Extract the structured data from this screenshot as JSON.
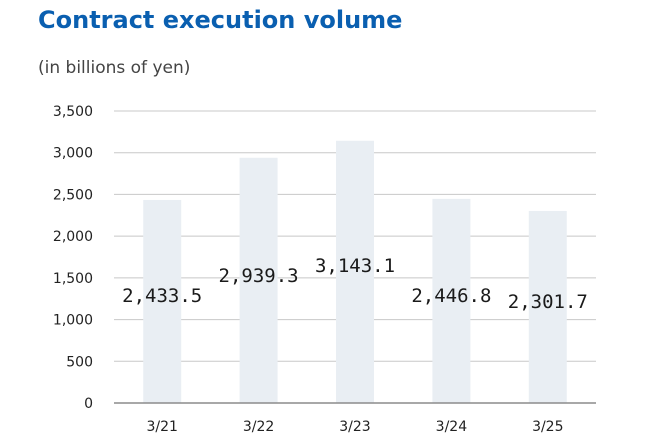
{
  "chart_data": {
    "type": "bar",
    "title": "Contract execution volume",
    "subtitle": "(in billions of yen)",
    "categories": [
      "3/21",
      "3/22",
      "3/23",
      "3/24",
      "3/25"
    ],
    "values": [
      2433.5,
      2939.3,
      3143.1,
      2446.8,
      2301.7
    ],
    "data_labels": [
      "2,433.5",
      "2,939.3",
      "3,143.1",
      "2,446.8",
      "2,301.7"
    ],
    "y_ticks": [
      0,
      500,
      1000,
      1500,
      2000,
      2500,
      3000,
      3500
    ],
    "y_tick_labels": [
      "0",
      "500",
      "1,000",
      "1,500",
      "2,000",
      "2,500",
      "3,000",
      "3,500"
    ],
    "ylim": [
      0,
      3500
    ],
    "grid": true,
    "legend": "none",
    "xlabel": "",
    "ylabel": ""
  },
  "colors": {
    "title": "#0a5fb0",
    "bar": "#e9eef3",
    "grid": "#c8c8c8",
    "axis": "#8c8c8c"
  }
}
